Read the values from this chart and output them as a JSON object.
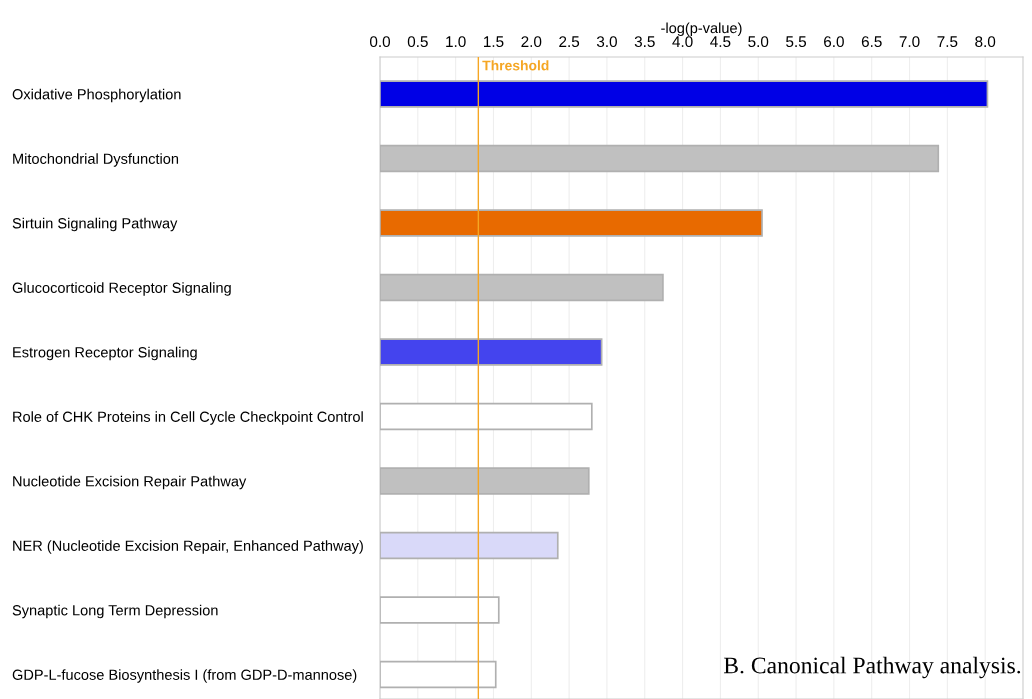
{
  "chart_data": {
    "type": "bar",
    "orientation": "horizontal",
    "xlabel": "-log(p-value)",
    "categories": [
      "Oxidative Phosphorylation",
      "Mitochondrial Dysfunction",
      "Sirtuin Signaling Pathway",
      "Glucocorticoid Receptor Signaling",
      "Estrogen Receptor Signaling",
      "Role of CHK Proteins in Cell Cycle Checkpoint Control",
      "Nucleotide Excision Repair Pathway",
      "NER (Nucleotide Excision Repair, Enhanced Pathway)",
      "Synaptic Long Term Depression",
      "GDP-L-fucose Biosynthesis I (from GDP-D-mannose)"
    ],
    "values": [
      8.03,
      7.38,
      5.05,
      3.74,
      2.93,
      2.8,
      2.76,
      2.35,
      1.57,
      1.53
    ],
    "colors": [
      "#0000e6",
      "#c0c0c0",
      "#e86a00",
      "#c0c0c0",
      "#4444ee",
      "#ffffff",
      "#c0c0c0",
      "#d9d9f9",
      "#ffffff",
      "#ffffff"
    ],
    "xlim": [
      0,
      8.5
    ],
    "xticks": [
      {
        "value": 0,
        "label": "0.0"
      },
      {
        "value": 0.5,
        "label": "0.5"
      },
      {
        "value": 1,
        "label": "1.0"
      },
      {
        "value": 1.5,
        "label": "1.5"
      },
      {
        "value": 2,
        "label": "2.0"
      },
      {
        "value": 2.5,
        "label": "2.5"
      },
      {
        "value": 3,
        "label": "3.0"
      },
      {
        "value": 3.5,
        "label": "3.5"
      },
      {
        "value": 4,
        "label": "4.0"
      },
      {
        "value": 4.5,
        "label": "4.5"
      },
      {
        "value": 5,
        "label": "5.0"
      },
      {
        "value": 5.5,
        "label": "5.5"
      },
      {
        "value": 6,
        "label": "6.0"
      },
      {
        "value": 6.5,
        "label": "6.5"
      },
      {
        "value": 7,
        "label": "7.0"
      },
      {
        "value": 7.5,
        "label": "7.5"
      },
      {
        "value": 8,
        "label": "8.0"
      }
    ],
    "ref_lines": [
      {
        "axis": "x",
        "value": 1.3,
        "label": "Threshold",
        "color": "#f5a623"
      }
    ],
    "grid": "x",
    "annotations": [
      "B. Canonical Pathway analysis."
    ]
  }
}
